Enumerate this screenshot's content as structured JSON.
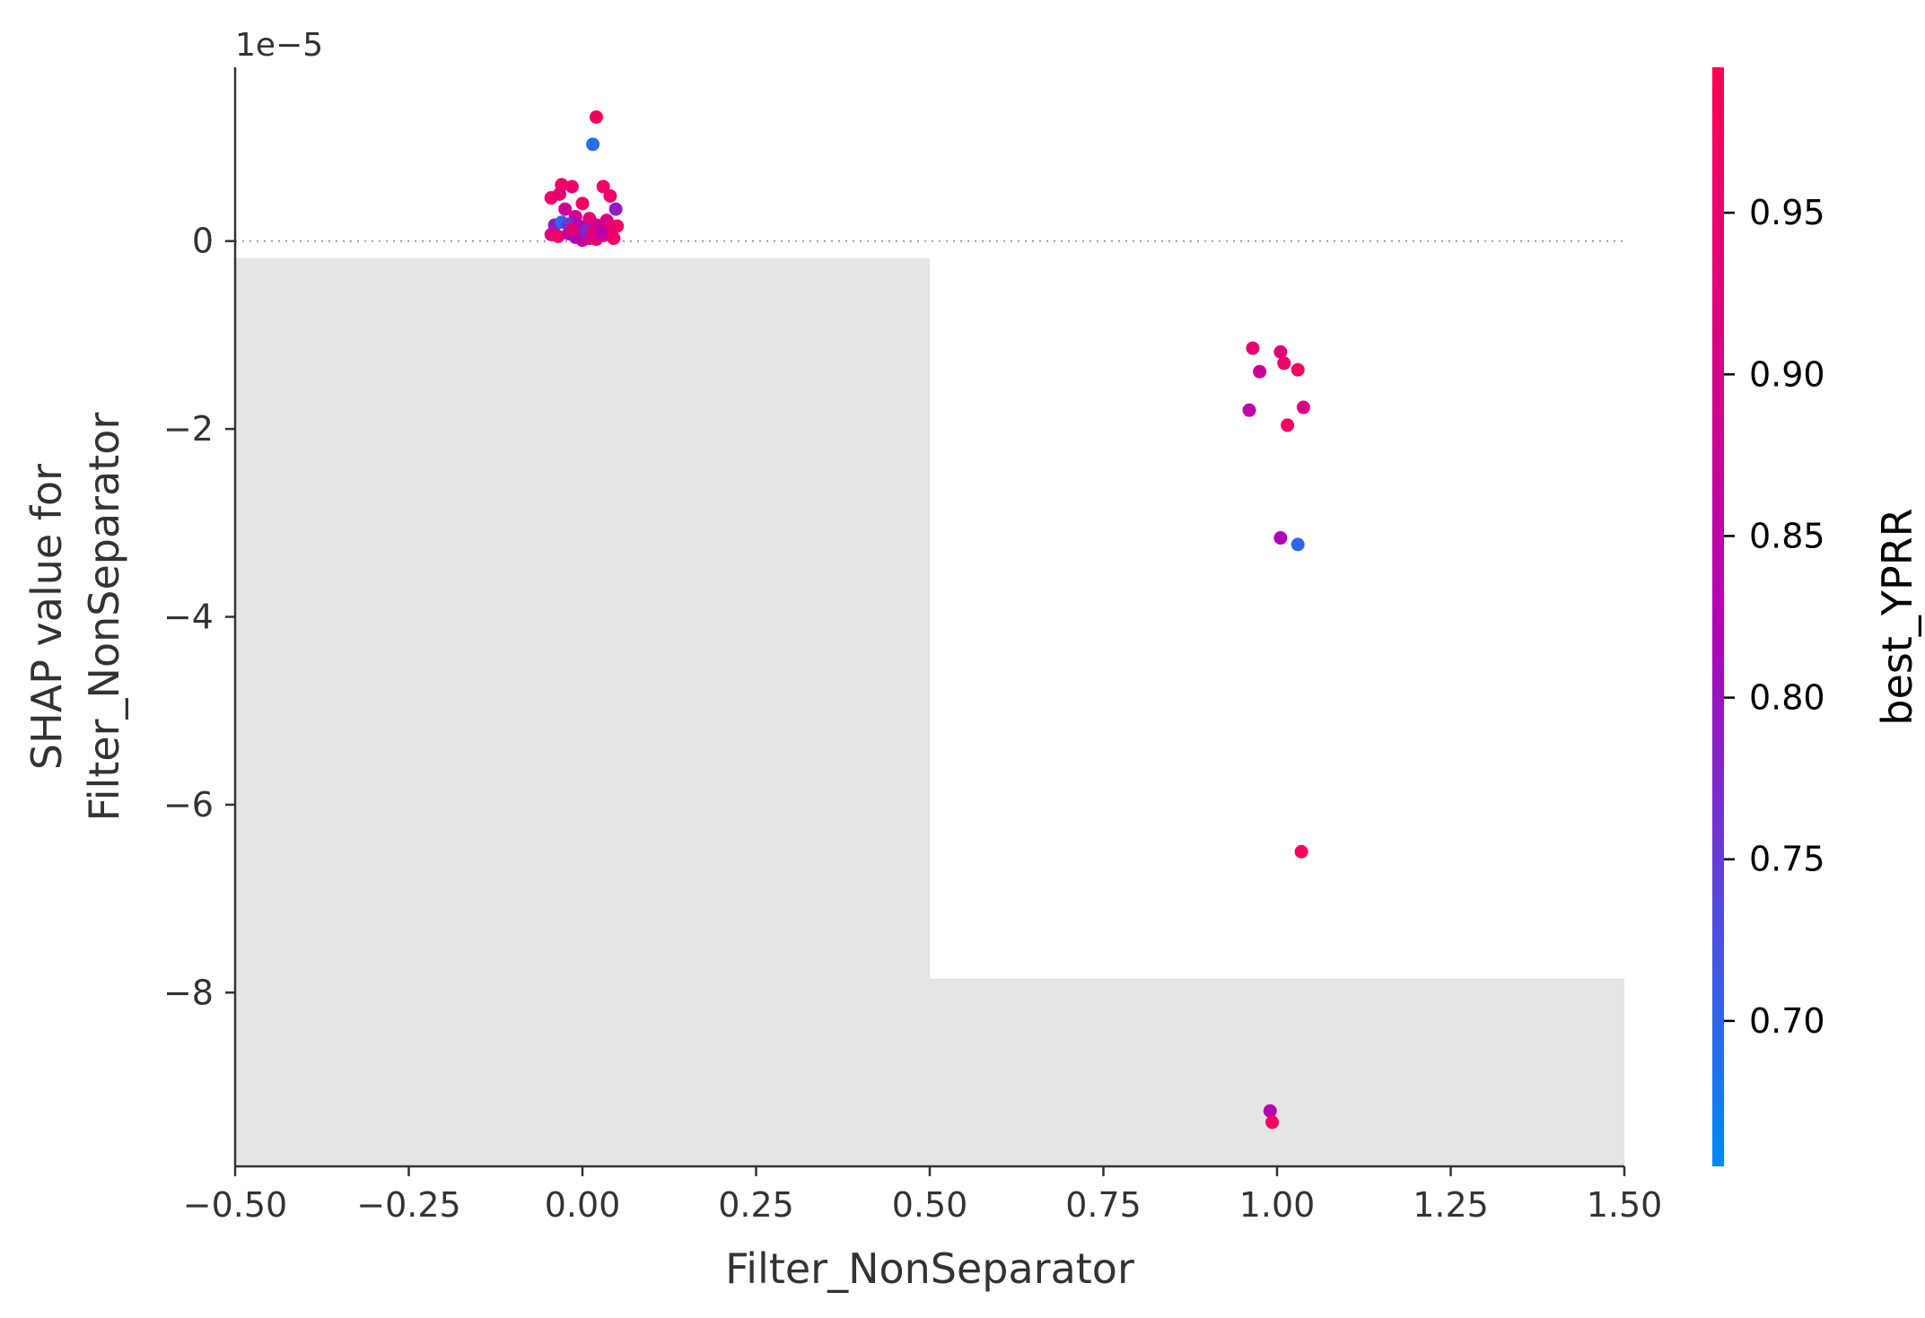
{
  "chart_data": {
    "type": "scatter",
    "title": "",
    "xlabel": "Filter_NonSeparator",
    "ylabel_lines": [
      "SHAP value for",
      "Filter_NonSeparator"
    ],
    "y_offset_text": "1e−5",
    "xlim": [
      -0.5,
      1.5
    ],
    "ylim": [
      -9.85,
      1.85
    ],
    "y_scale_note": "values shown in units of 1e-5",
    "x_ticks": [
      {
        "v": -0.5,
        "label": "−0.50"
      },
      {
        "v": -0.25,
        "label": "−0.25"
      },
      {
        "v": 0.0,
        "label": "0.00"
      },
      {
        "v": 0.25,
        "label": "0.25"
      },
      {
        "v": 0.5,
        "label": "0.50"
      },
      {
        "v": 0.75,
        "label": "0.75"
      },
      {
        "v": 1.0,
        "label": "1.00"
      },
      {
        "v": 1.25,
        "label": "1.25"
      },
      {
        "v": 1.5,
        "label": "1.50"
      }
    ],
    "y_ticks": [
      {
        "v": 0,
        "label": "0"
      },
      {
        "v": -2,
        "label": "−2"
      },
      {
        "v": -4,
        "label": "−4"
      },
      {
        "v": -6,
        "label": "−6"
      },
      {
        "v": -8,
        "label": "−8"
      }
    ],
    "zero_line": 0,
    "histogram_bars": [
      {
        "x0": -0.5,
        "x1": 0.5,
        "top": -0.18
      },
      {
        "x0": 0.5,
        "x1": 1.5,
        "top": -7.85
      }
    ],
    "colorbar": {
      "label": "best_YPRR",
      "range": [
        0.655,
        0.995
      ],
      "low_color": "#008afb",
      "mid_color": "#b400b4",
      "high_color": "#ff0052",
      "ticks": [
        {
          "v": 0.7,
          "label": "0.70"
        },
        {
          "v": 0.75,
          "label": "0.75"
        },
        {
          "v": 0.8,
          "label": "0.80"
        },
        {
          "v": 0.85,
          "label": "0.85"
        },
        {
          "v": 0.9,
          "label": "0.90"
        },
        {
          "v": 0.95,
          "label": "0.95"
        }
      ]
    },
    "points": [
      {
        "x": 0.02,
        "y": 1.32,
        "c": 0.97
      },
      {
        "x": 0.015,
        "y": 1.03,
        "c": 0.69
      },
      {
        "x": -0.03,
        "y": 0.6,
        "c": 0.96
      },
      {
        "x": 0.03,
        "y": 0.58,
        "c": 0.96
      },
      {
        "x": -0.015,
        "y": 0.58,
        "c": 0.95
      },
      {
        "x": -0.045,
        "y": 0.46,
        "c": 0.96
      },
      {
        "x": -0.033,
        "y": 0.5,
        "c": 0.94
      },
      {
        "x": 0.04,
        "y": 0.48,
        "c": 0.95
      },
      {
        "x": 0.0,
        "y": 0.4,
        "c": 0.96
      },
      {
        "x": -0.025,
        "y": 0.34,
        "c": 0.88
      },
      {
        "x": 0.048,
        "y": 0.34,
        "c": 0.79
      },
      {
        "x": -0.01,
        "y": 0.26,
        "c": 0.87
      },
      {
        "x": 0.01,
        "y": 0.24,
        "c": 0.94
      },
      {
        "x": 0.035,
        "y": 0.22,
        "c": 0.9
      },
      {
        "x": -0.04,
        "y": 0.17,
        "c": 0.79
      },
      {
        "x": -0.03,
        "y": 0.2,
        "c": 0.7
      },
      {
        "x": -0.02,
        "y": 0.18,
        "c": 0.76
      },
      {
        "x": -0.005,
        "y": 0.16,
        "c": 0.83
      },
      {
        "x": 0.02,
        "y": 0.17,
        "c": 0.9
      },
      {
        "x": 0.05,
        "y": 0.16,
        "c": 0.97
      },
      {
        "x": 0.04,
        "y": 0.15,
        "c": 0.95
      },
      {
        "x": -0.045,
        "y": 0.07,
        "c": 0.92
      },
      {
        "x": -0.035,
        "y": 0.05,
        "c": 0.96
      },
      {
        "x": -0.02,
        "y": 0.08,
        "c": 0.86
      },
      {
        "x": -0.01,
        "y": 0.04,
        "c": 0.8
      },
      {
        "x": 0.0,
        "y": 0.01,
        "c": 0.85
      },
      {
        "x": 0.01,
        "y": 0.03,
        "c": 0.91
      },
      {
        "x": 0.02,
        "y": 0.02,
        "c": 0.94
      },
      {
        "x": 0.03,
        "y": 0.06,
        "c": 0.89
      },
      {
        "x": 0.045,
        "y": 0.03,
        "c": 0.96
      },
      {
        "x": 0.005,
        "y": 0.11,
        "c": 0.78
      },
      {
        "x": 0.015,
        "y": 0.09,
        "c": 0.92
      },
      {
        "x": -0.015,
        "y": 0.12,
        "c": 0.93
      },
      {
        "x": 0.027,
        "y": 0.1,
        "c": 0.85
      },
      {
        "x": 0.965,
        "y": -1.14,
        "c": 0.94
      },
      {
        "x": 1.005,
        "y": -1.18,
        "c": 0.92
      },
      {
        "x": 1.01,
        "y": -1.3,
        "c": 0.96
      },
      {
        "x": 0.975,
        "y": -1.39,
        "c": 0.87
      },
      {
        "x": 1.03,
        "y": -1.37,
        "c": 0.98
      },
      {
        "x": 0.96,
        "y": -1.8,
        "c": 0.85
      },
      {
        "x": 1.038,
        "y": -1.77,
        "c": 0.91
      },
      {
        "x": 1.015,
        "y": -1.96,
        "c": 0.96
      },
      {
        "x": 1.005,
        "y": -3.16,
        "c": 0.82
      },
      {
        "x": 1.03,
        "y": -3.23,
        "c": 0.7
      },
      {
        "x": 1.035,
        "y": -6.5,
        "c": 0.98
      },
      {
        "x": 0.99,
        "y": -9.26,
        "c": 0.83
      },
      {
        "x": 0.993,
        "y": -9.38,
        "c": 0.97
      }
    ]
  }
}
